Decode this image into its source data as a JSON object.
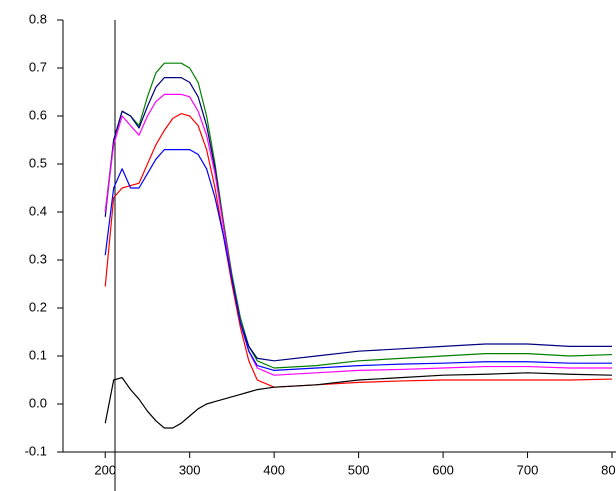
{
  "chart_data": {
    "type": "line",
    "x": [
      200,
      210,
      220,
      230,
      240,
      250,
      260,
      270,
      280,
      290,
      300,
      310,
      320,
      330,
      340,
      350,
      360,
      370,
      380,
      400,
      450,
      500,
      550,
      600,
      650,
      700,
      750,
      800
    ],
    "series": [
      {
        "color": "#008000",
        "values": [
          0.4,
          0.55,
          0.61,
          0.6,
          0.58,
          0.64,
          0.69,
          0.71,
          0.71,
          0.71,
          0.7,
          0.67,
          0.6,
          0.5,
          0.38,
          0.27,
          0.18,
          0.12,
          0.09,
          0.075,
          0.08,
          0.09,
          0.095,
          0.1,
          0.105,
          0.105,
          0.1,
          0.103
        ]
      },
      {
        "color": "#000080",
        "values": [
          0.39,
          0.55,
          0.61,
          0.6,
          0.575,
          0.62,
          0.66,
          0.68,
          0.68,
          0.68,
          0.67,
          0.64,
          0.58,
          0.49,
          0.37,
          0.26,
          0.17,
          0.12,
          0.095,
          0.09,
          0.1,
          0.11,
          0.115,
          0.12,
          0.125,
          0.125,
          0.12,
          0.12
        ]
      },
      {
        "color": "#ff00ff",
        "values": [
          0.4,
          0.54,
          0.6,
          0.58,
          0.56,
          0.6,
          0.63,
          0.645,
          0.645,
          0.645,
          0.64,
          0.61,
          0.56,
          0.48,
          0.37,
          0.26,
          0.17,
          0.11,
          0.075,
          0.06,
          0.065,
          0.07,
          0.072,
          0.075,
          0.078,
          0.078,
          0.075,
          0.075
        ]
      },
      {
        "color": "#ff0000",
        "values": [
          0.245,
          0.43,
          0.45,
          0.455,
          0.46,
          0.5,
          0.54,
          0.57,
          0.595,
          0.605,
          0.6,
          0.58,
          0.53,
          0.45,
          0.35,
          0.25,
          0.16,
          0.09,
          0.05,
          0.035,
          0.04,
          0.045,
          0.048,
          0.05,
          0.05,
          0.05,
          0.05,
          0.052
        ]
      },
      {
        "color": "#0000ff",
        "values": [
          0.31,
          0.45,
          0.49,
          0.45,
          0.45,
          0.48,
          0.51,
          0.53,
          0.53,
          0.53,
          0.53,
          0.52,
          0.49,
          0.43,
          0.35,
          0.26,
          0.17,
          0.11,
          0.08,
          0.07,
          0.075,
          0.08,
          0.083,
          0.085,
          0.088,
          0.088,
          0.085,
          0.085
        ]
      },
      {
        "color": "#000000",
        "values": [
          -0.04,
          0.05,
          0.055,
          0.03,
          0.01,
          -0.015,
          -0.035,
          -0.05,
          -0.05,
          -0.04,
          -0.025,
          -0.01,
          0.0,
          0.005,
          0.01,
          0.015,
          0.02,
          0.025,
          0.03,
          0.035,
          0.04,
          0.05,
          0.055,
          0.06,
          0.062,
          0.065,
          0.062,
          0.06
        ]
      }
    ],
    "xlim": [
      150,
      800
    ],
    "xticks": [
      200,
      300,
      400,
      500,
      600,
      700,
      800
    ],
    "ylim": [
      -0.1,
      0.8
    ],
    "yticks": [
      -0.1,
      {
        "value": 0,
        "label": "0.0"
      },
      0.1,
      0.2,
      0.3,
      0.4,
      0.5,
      0.6,
      0.7,
      0.8
    ]
  }
}
